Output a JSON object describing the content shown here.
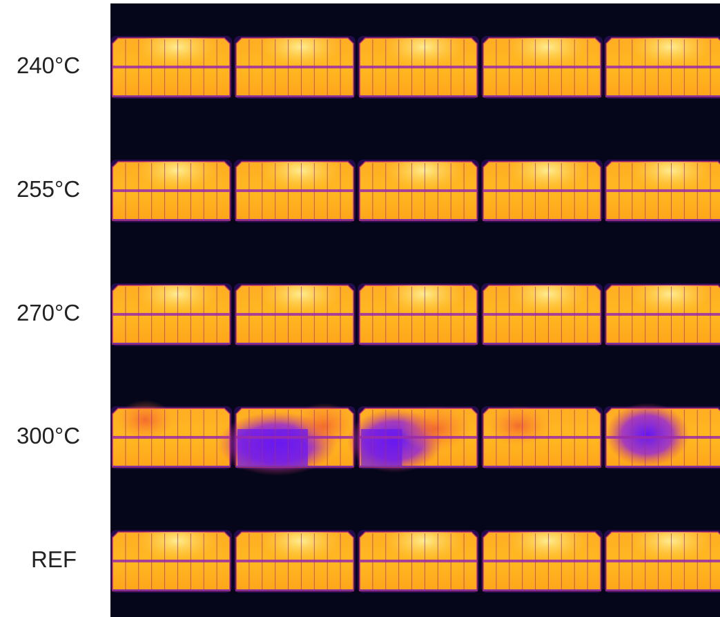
{
  "rows": [
    {
      "label": "240°C"
    },
    {
      "label": "255°C"
    },
    {
      "label": "270°C"
    },
    {
      "label": "300°C"
    },
    {
      "label": "REF"
    }
  ]
}
